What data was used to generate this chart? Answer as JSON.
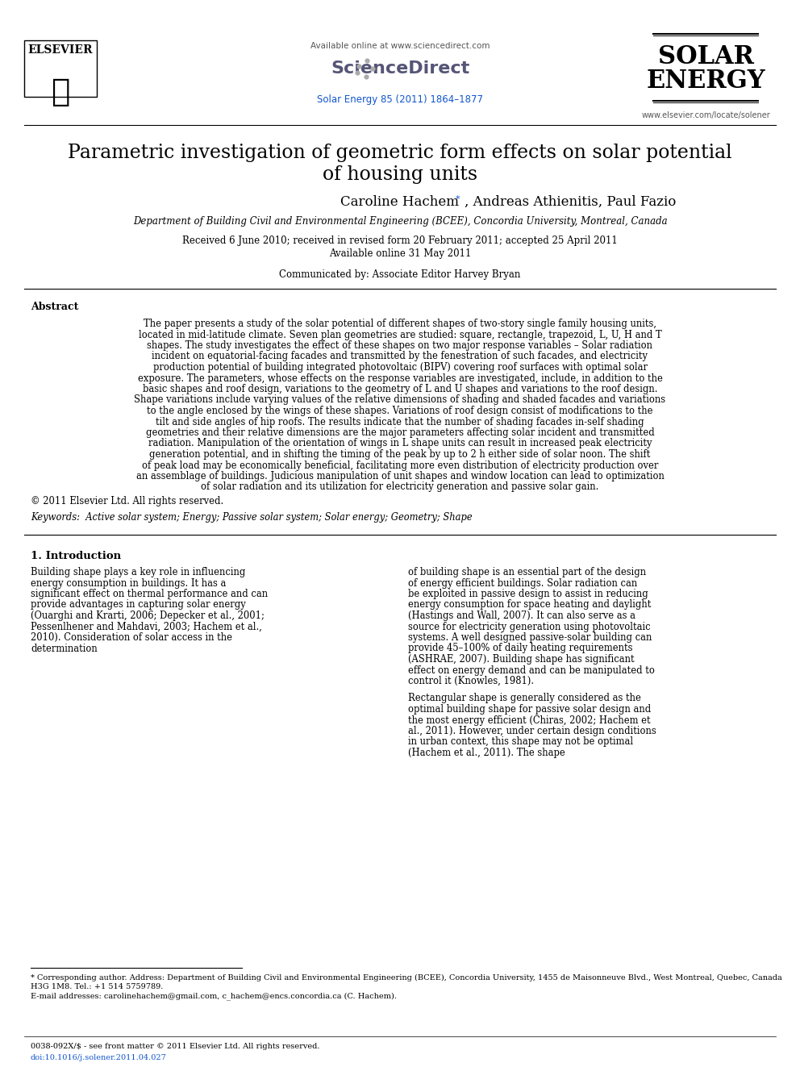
{
  "bg_color": "#ffffff",
  "title_line1": "Parametric investigation of geometric form effects on solar potential",
  "title_line2": "of housing units",
  "authors": "Caroline Hachem*, Andreas Athienitis, Paul Fazio",
  "affiliation": "Department of Building Civil and Environmental Engineering (BCEE), Concordia University, Montreal, Canada",
  "received": "Received 6 June 2010; received in revised form 20 February 2011; accepted 25 April 2011",
  "available": "Available online 31 May 2011",
  "communicated": "Communicated by: Associate Editor Harvey Bryan",
  "journal_ref": "Solar Energy 85 (2011) 1864–1877",
  "sd_url": "Available online at www.sciencedirect.com",
  "elsevier_url": "www.elsevier.com/locate/solener",
  "abstract_title": "Abstract",
  "abstract_text": "The paper presents a study of the solar potential of different shapes of two-story single family housing units, located in mid-latitude climate. Seven plan geometries are studied: square, rectangle, trapezoid, L, U, H and T shapes. The study investigates the effect of these shapes on two major response variables – Solar radiation incident on equatorial-facing facades and transmitted by the fenestration of such facades, and electricity production potential of building integrated photovoltaic (BIPV) covering roof surfaces with optimal solar exposure. The parameters, whose effects on the response variables are investigated, include, in addition to the basic shapes and roof design, variations to the geometry of L and U shapes and variations to the roof design. Shape variations include varying values of the relative dimensions of shading and shaded facades and variations to the angle enclosed by the wings of these shapes. Variations of roof design consist of modifications to the tilt and side angles of hip roofs. The results indicate that the number of shading facades in-self shading geometries and their relative dimensions are the major parameters affecting solar incident and transmitted radiation. Manipulation of the orientation of wings in L shape units can result in increased peak electricity generation potential, and in shifting the timing of the peak by up to 2 h either side of solar noon. The shift of peak load may be economically beneficial, facilitating more even distribution of electricity production over an assemblage of buildings. Judicious manipulation of unit shapes and window location can lead to optimization of solar radiation and its utilization for electricity generation and passive solar gain.",
  "copyright": "© 2011 Elsevier Ltd. All rights reserved.",
  "keywords": "Keywords:  Active solar system; Energy; Passive solar system; Solar energy; Geometry; Shape",
  "intro_head": "1. Introduction",
  "intro_col1": "Building shape plays a key role in influencing energy consumption in buildings. It has a significant effect on thermal performance and can provide advantages in capturing solar energy (Ouarghi and Krarti, 2006; Depecker et al., 2001; Pessenlhener and Mahdavi, 2003; Hachem et al., 2010). Consideration of solar access in the determination",
  "intro_col2": "of building shape is an essential part of the design of energy efficient buildings. Solar radiation can be exploited in passive design to assist in reducing energy consumption for space heating and daylight (Hastings and Wall, 2007). It can also serve as a source for electricity generation using photovoltaic systems. A well designed passive-solar building can provide 45–100% of daily heating requirements (ASHRAE, 2007). Building shape has significant effect on energy demand and can be manipulated to control it (Knowles, 1981).",
  "intro_col2b": "Rectangular shape is generally considered as the optimal building shape for passive solar design and the most energy efficient (Chiras, 2002; Hachem et al., 2011). However, under certain design conditions in urban context, this shape may not be optimal (Hachem et al., 2011). The shape",
  "footnote1": "* Corresponding author. Address: Department of Building Civil and Environmental Engineering (BCEE), Concordia University, 1455 de Maisonneuve Blvd., West Montreal, Quebec, Canada H3G 1M8. Tel.: +1 514 5759789.",
  "footnote2": "E-mail addresses: carolinehachem@gmail.com, c_hachem@encs.concordia.ca (C. Hachem).",
  "footer1": "0038-092X/$ - see front matter © 2011 Elsevier Ltd. All rights reserved.",
  "footer2": "doi:10.1016/j.solener.2011.04.027",
  "solar_energy_line1": "SOLAR",
  "solar_energy_line2": "ENERGY",
  "link_color": "#1155cc",
  "text_color": "#000000",
  "gray_color": "#555555"
}
